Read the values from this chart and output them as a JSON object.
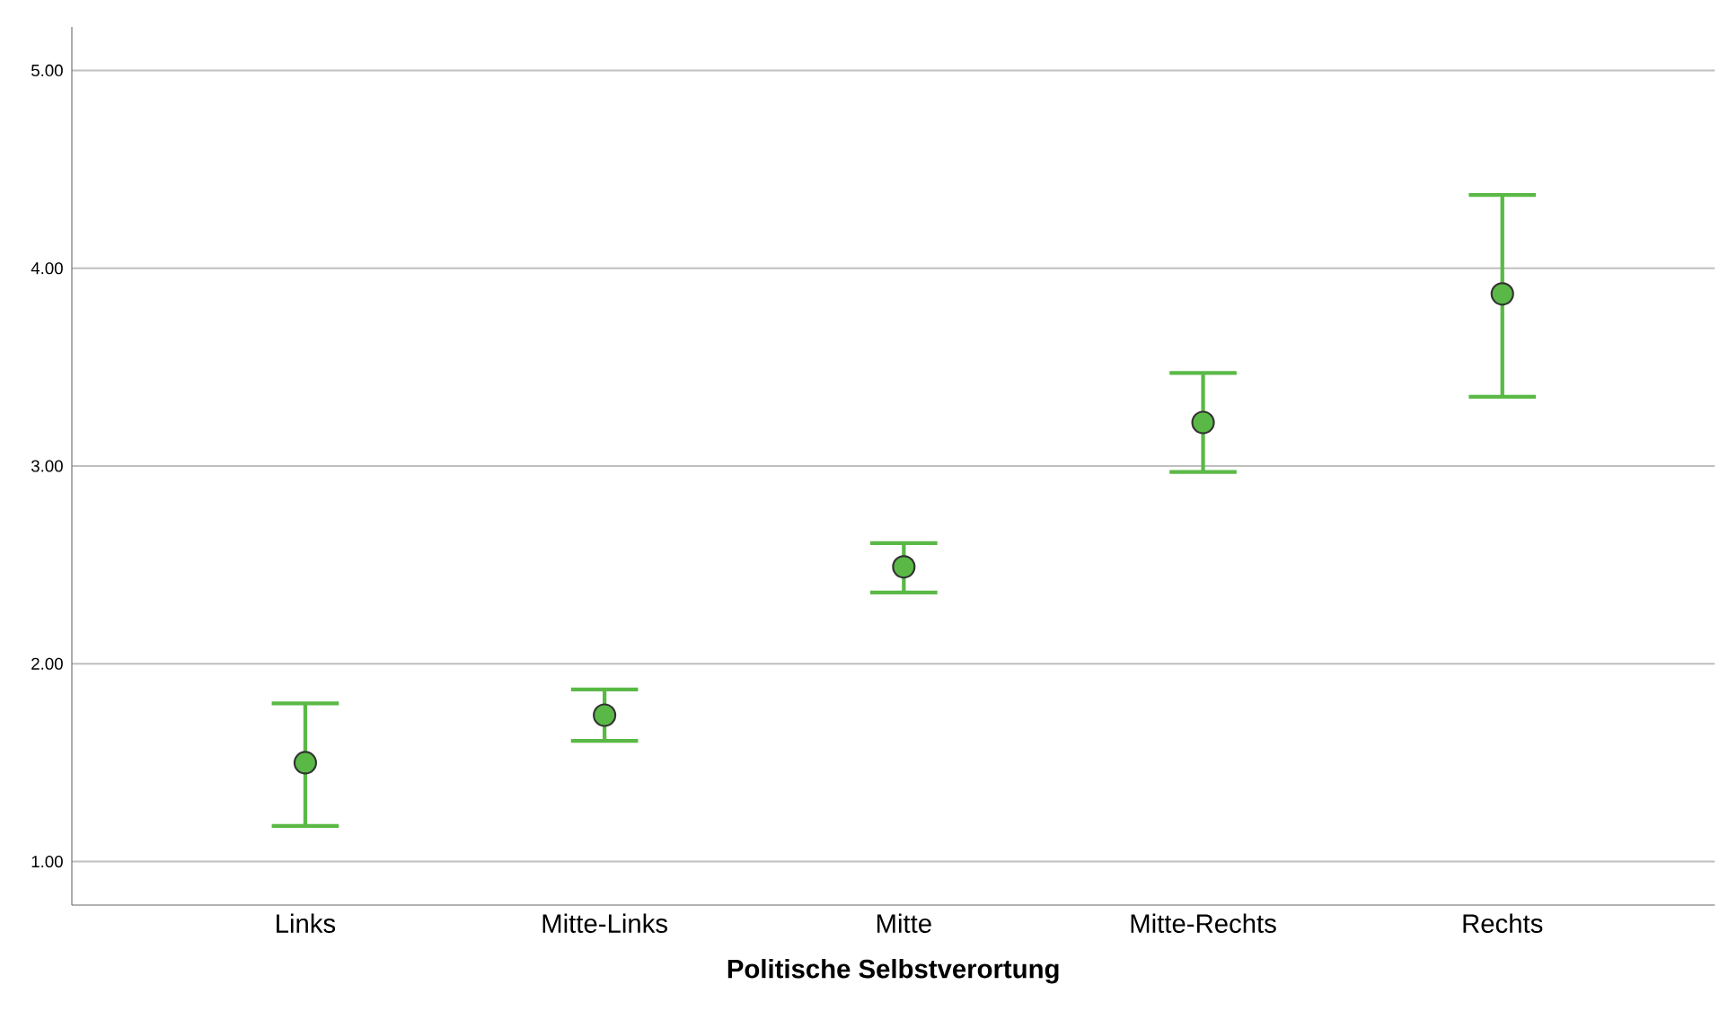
{
  "chart_data": {
    "type": "scatter",
    "xlabel": "Politische Selbstverortung",
    "categories": [
      "Links",
      "Mitte-Links",
      "Mitte",
      "Mitte-Rechts",
      "Rechts"
    ],
    "values": [
      1.5,
      1.74,
      2.49,
      3.22,
      3.87
    ],
    "errors": [
      [
        1.18,
        1.8
      ],
      [
        1.61,
        1.87
      ],
      [
        2.36,
        2.61
      ],
      [
        2.97,
        3.47
      ],
      [
        3.35,
        4.37
      ]
    ],
    "color": "#5ab946",
    "ylim": [
      0.78,
      5.22
    ],
    "yticks": [
      {
        "value": 1,
        "label": "1.00"
      },
      {
        "value": 2,
        "label": "2.00"
      },
      {
        "value": 3,
        "label": "3.00"
      },
      {
        "value": 4,
        "label": "4.00"
      },
      {
        "value": 5,
        "label": "5.00"
      }
    ],
    "grid": "y",
    "marker": "circle"
  }
}
